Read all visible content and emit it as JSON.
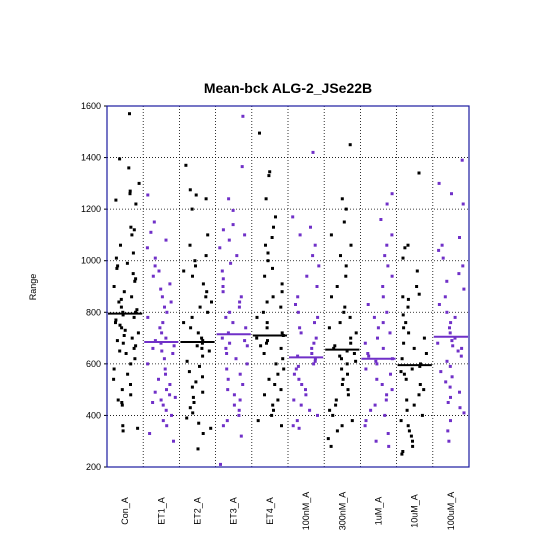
{
  "chart_data": {
    "type": "scatter",
    "title": "Mean-bck ALG-2_JSe22B",
    "ylabel": "Range",
    "xlabel": "",
    "ylim": [
      200,
      1600
    ],
    "yticks": [
      "200",
      "400",
      "600",
      "800",
      "1000",
      "1200",
      "1400",
      "1600"
    ],
    "grid": true,
    "colors": {
      "black": "#000000",
      "purple": "#7030c8",
      "axis": "#1a1aa0"
    },
    "categories": [
      "Con_A",
      "ET1_A",
      "ET2_A",
      "ET3_A",
      "ET4_A",
      "100nM_A",
      "300nM_A",
      "1uM_A",
      "10uM_A",
      "100uM_A"
    ],
    "series_colors": [
      "black",
      "purple",
      "black",
      "purple",
      "black",
      "purple",
      "black",
      "purple",
      "black",
      "purple"
    ],
    "means": [
      795,
      685,
      685,
      715,
      710,
      625,
      655,
      620,
      595,
      705
    ],
    "series": [
      {
        "values": [
          1570,
          1395,
          1360,
          1300,
          1270,
          1260,
          1235,
          1220,
          1130,
          1120,
          1100,
          1060,
          1030,
          1010,
          990,
          980,
          970,
          950,
          930,
          920,
          900,
          880,
          860,
          850,
          840,
          820,
          810,
          800,
          800,
          790,
          780,
          770,
          760,
          750,
          740,
          730,
          720,
          710,
          700,
          690,
          680,
          670,
          660,
          650,
          640,
          620,
          600,
          580,
          560,
          540,
          520,
          500,
          480,
          460,
          450,
          440,
          360,
          350,
          340
        ]
      },
      {
        "values": [
          1255,
          1150,
          1110,
          1080,
          1050,
          1010,
          980,
          960,
          940,
          910,
          890,
          860,
          840,
          820,
          800,
          780,
          760,
          740,
          720,
          700,
          690,
          680,
          670,
          660,
          650,
          640,
          620,
          600,
          580,
          560,
          540,
          520,
          500,
          490,
          480,
          470,
          460,
          450,
          440,
          420,
          400,
          380,
          360,
          330,
          300
        ]
      },
      {
        "values": [
          1370,
          1275,
          1255,
          1240,
          1200,
          1100,
          1060,
          1020,
          1000,
          980,
          960,
          940,
          910,
          880,
          860,
          840,
          820,
          800,
          780,
          760,
          740,
          720,
          700,
          690,
          680,
          670,
          660,
          650,
          630,
          610,
          590,
          570,
          550,
          530,
          510,
          490,
          470,
          450,
          430,
          410,
          390,
          370,
          350,
          330,
          270
        ]
      },
      {
        "values": [
          1560,
          1365,
          1240,
          1195,
          1140,
          1120,
          1100,
          1080,
          1050,
          1020,
          990,
          960,
          930,
          900,
          880,
          860,
          840,
          820,
          800,
          780,
          760,
          740,
          720,
          700,
          690,
          680,
          670,
          660,
          640,
          620,
          600,
          580,
          560,
          540,
          520,
          500,
          480,
          460,
          440,
          420,
          400,
          380,
          360,
          320,
          210
        ]
      },
      {
        "values": [
          1495,
          1345,
          1330,
          1240,
          1170,
          1130,
          1090,
          1060,
          1030,
          1000,
          970,
          940,
          910,
          880,
          860,
          840,
          820,
          800,
          780,
          760,
          740,
          720,
          710,
          700,
          690,
          680,
          670,
          660,
          640,
          620,
          600,
          580,
          560,
          540,
          520,
          500,
          480,
          460,
          440,
          420,
          400,
          380,
          360
        ]
      },
      {
        "values": [
          1420,
          1170,
          1130,
          1100,
          1060,
          1020,
          980,
          940,
          900,
          860,
          830,
          800,
          780,
          760,
          740,
          720,
          700,
          680,
          660,
          640,
          630,
          620,
          610,
          600,
          590,
          580,
          560,
          540,
          520,
          500,
          480,
          460,
          440,
          420,
          400,
          380,
          360,
          350
        ]
      },
      {
        "values": [
          1450,
          1240,
          1200,
          1150,
          1100,
          1060,
          1020,
          980,
          940,
          900,
          860,
          820,
          800,
          780,
          760,
          740,
          720,
          700,
          680,
          670,
          660,
          650,
          640,
          630,
          620,
          610,
          600,
          580,
          560,
          540,
          520,
          500,
          480,
          460,
          440,
          420,
          400,
          380,
          360,
          340,
          310,
          280
        ]
      },
      {
        "values": [
          1260,
          1220,
          1160,
          1100,
          1060,
          1020,
          980,
          940,
          900,
          860,
          830,
          800,
          780,
          760,
          740,
          720,
          700,
          680,
          660,
          640,
          630,
          620,
          610,
          600,
          580,
          560,
          540,
          520,
          500,
          480,
          460,
          440,
          420,
          400,
          380,
          360,
          330,
          300,
          280
        ]
      },
      {
        "values": [
          1340,
          1060,
          1050,
          1010,
          960,
          900,
          870,
          860,
          850,
          820,
          790,
          760,
          740,
          720,
          700,
          680,
          660,
          640,
          620,
          600,
          590,
          580,
          570,
          560,
          540,
          520,
          500,
          480,
          460,
          440,
          420,
          400,
          380,
          360,
          340,
          320,
          300,
          280,
          260,
          250
        ]
      },
      {
        "values": [
          1390,
          1300,
          1260,
          1220,
          1090,
          1060,
          1040,
          1010,
          980,
          950,
          920,
          890,
          860,
          830,
          800,
          780,
          760,
          740,
          720,
          700,
          690,
          680,
          670,
          660,
          650,
          630,
          610,
          590,
          570,
          550,
          530,
          510,
          490,
          470,
          450,
          430,
          410,
          380,
          340,
          300
        ]
      }
    ]
  }
}
